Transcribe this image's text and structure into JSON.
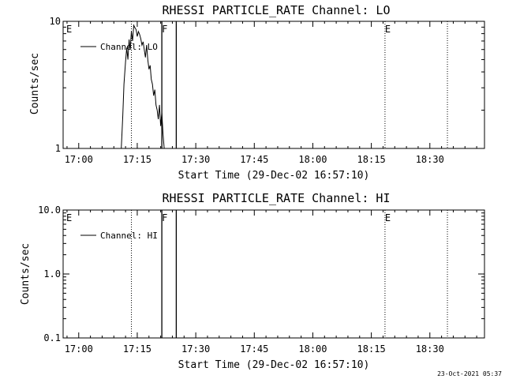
{
  "footer_timestamp": "23-Oct-2021 05:37",
  "chart_data": [
    {
      "type": "line",
      "title": "RHESSI PARTICLE_RATE Channel: LO",
      "xlabel": "Start Time (29-Dec-02 16:57:10)",
      "ylabel": "Counts/sec",
      "yscale": "log",
      "ylim": [
        1,
        10
      ],
      "xlim_minutes": [
        -4,
        104
      ],
      "x_tick_labels": [
        "17:00",
        "17:15",
        "17:30",
        "17:45",
        "18:00",
        "18:15",
        "18:30"
      ],
      "x_tick_minutes": [
        0,
        15,
        30,
        45,
        60,
        75,
        90
      ],
      "y_tick_labels": [
        "1",
        "10"
      ],
      "y_tick_values": [
        1,
        10
      ],
      "legend": {
        "label": "Channel: LO",
        "placement": "top-left"
      },
      "markers": [
        {
          "label": "E",
          "minute": -3.2,
          "style": "none"
        },
        {
          "label": "",
          "minute": 13.5,
          "style": "dotted"
        },
        {
          "label": "F",
          "minute": 21.3,
          "style": "solid"
        },
        {
          "label": "",
          "minute": 25.0,
          "style": "solid"
        },
        {
          "label": "E",
          "minute": 78.5,
          "style": "dotted"
        },
        {
          "label": "",
          "minute": 94.5,
          "style": "dotted"
        }
      ],
      "series": [
        {
          "x": [
            10.9,
            11.3,
            11.6,
            12.0,
            12.3,
            12.6,
            12.9,
            13.2,
            13.5,
            13.8,
            14.1,
            14.4,
            14.7,
            15.0,
            15.3,
            15.6,
            15.9,
            16.2,
            16.5,
            16.8,
            17.1,
            17.4,
            17.7,
            18.0,
            18.3,
            18.6,
            18.9,
            19.2,
            19.5,
            19.8,
            20.1,
            20.4,
            20.7,
            21.0,
            21.3,
            21.6,
            21.9,
            22.1
          ],
          "y": [
            1.0,
            1.8,
            3.2,
            4.8,
            6.2,
            5.0,
            7.2,
            6.0,
            8.3,
            7.0,
            9.3,
            8.9,
            8.6,
            7.6,
            8.3,
            7.9,
            7.3,
            6.5,
            6.9,
            6.0,
            5.2,
            6.5,
            5.0,
            4.2,
            4.5,
            3.5,
            3.2,
            2.6,
            2.9,
            2.2,
            2.0,
            1.7,
            2.2,
            1.5,
            1.9,
            1.3,
            1.0,
            1.0
          ]
        }
      ]
    },
    {
      "type": "line",
      "title": "RHESSI PARTICLE_RATE Channel: HI",
      "xlabel": "Start Time (29-Dec-02 16:57:10)",
      "ylabel": "Counts/sec",
      "yscale": "log",
      "ylim": [
        0.1,
        10
      ],
      "xlim_minutes": [
        -4,
        104
      ],
      "x_tick_labels": [
        "17:00",
        "17:15",
        "17:30",
        "17:45",
        "18:00",
        "18:15",
        "18:30"
      ],
      "x_tick_minutes": [
        0,
        15,
        30,
        45,
        60,
        75,
        90
      ],
      "y_tick_labels": [
        "0.1",
        "1.0",
        "10.0"
      ],
      "y_tick_values": [
        0.1,
        1,
        10
      ],
      "legend": {
        "label": "Channel: HI",
        "placement": "top-left"
      },
      "markers": [
        {
          "label": "E",
          "minute": -3.2,
          "style": "none"
        },
        {
          "label": "",
          "minute": 13.5,
          "style": "dotted"
        },
        {
          "label": "F",
          "minute": 21.3,
          "style": "solid"
        },
        {
          "label": "",
          "minute": 25.0,
          "style": "solid"
        },
        {
          "label": "E",
          "minute": 78.5,
          "style": "dotted"
        },
        {
          "label": "",
          "minute": 94.5,
          "style": "dotted"
        }
      ],
      "series": [
        {
          "x": [],
          "y": []
        }
      ]
    }
  ]
}
